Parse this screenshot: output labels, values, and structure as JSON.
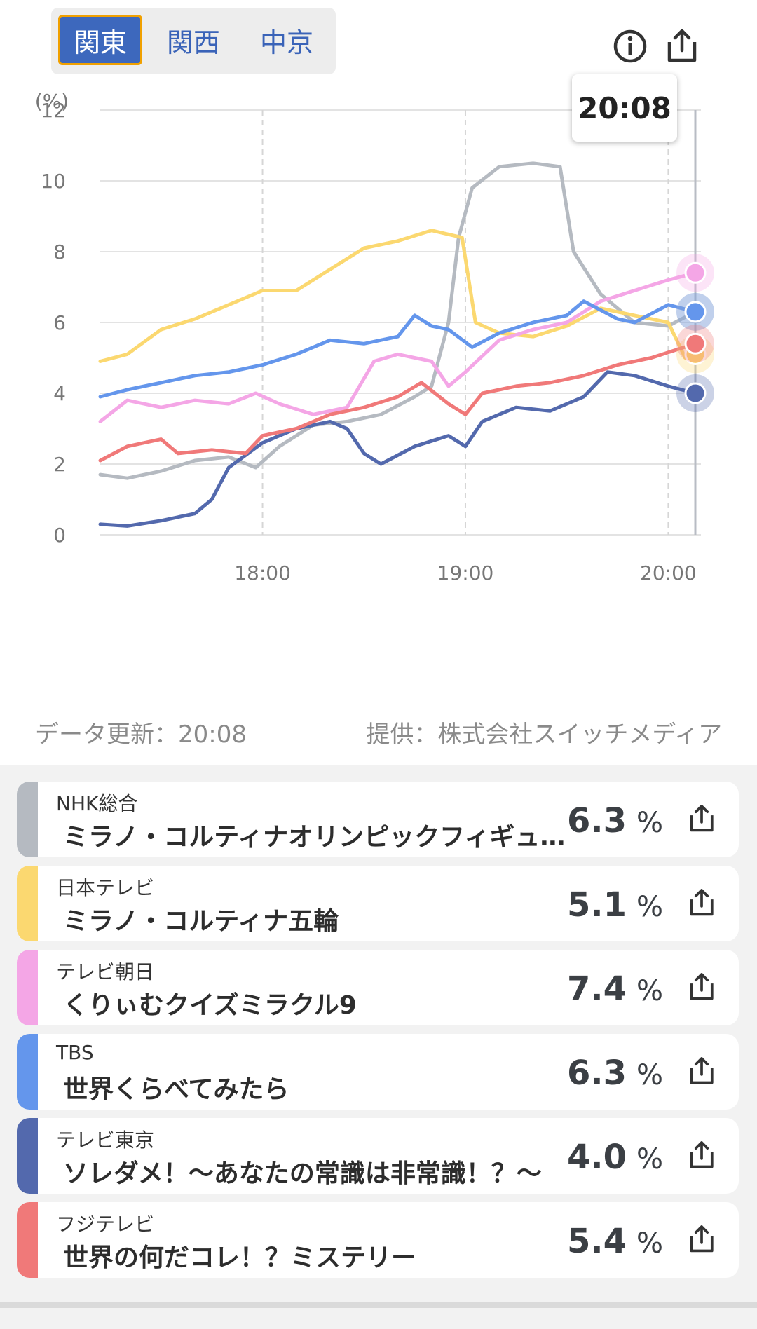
{
  "regions": {
    "items": [
      "関東",
      "関西",
      "中京"
    ],
    "active": 0
  },
  "tooltip_time": "20:08",
  "icons": {
    "info": "info-icon",
    "share": "share-icon"
  },
  "footer": {
    "updated": "データ更新：20:08",
    "provider": "提供：株式会社スイッチメディア"
  },
  "channels": [
    {
      "channel": "NHK総合",
      "title": "ミラノ・コルティナオリンピックフィギュ…",
      "value": "6.3",
      "unit": "%",
      "color": "#b5bac1"
    },
    {
      "channel": "日本テレビ",
      "title": "ミラノ・コルティナ五輪",
      "value": "5.1",
      "unit": "%",
      "color": "#fbd870"
    },
    {
      "channel": "テレビ朝日",
      "title": "くりぃむクイズミラクル9",
      "value": "7.4",
      "unit": "%",
      "color": "#f4a6e6"
    },
    {
      "channel": "TBS",
      "title": "世界くらべてみたら",
      "value": "6.3",
      "unit": "%",
      "color": "#6496ec"
    },
    {
      "channel": "テレビ東京",
      "title": "ソレダメ！～あなたの常識は非常識！？～",
      "value": "4.0",
      "unit": "%",
      "color": "#5369ad"
    },
    {
      "channel": "フジテレビ",
      "title": "世界の何だコレ！？ミステリー",
      "value": "5.4",
      "unit": "%",
      "color": "#f07979"
    }
  ],
  "chart_data": {
    "type": "line",
    "ylabel": "(%)",
    "ylim": [
      0,
      12
    ],
    "yticks": [
      "0",
      "2",
      "4",
      "6",
      "8",
      "10",
      "12"
    ],
    "xlim": [
      "17:12",
      "20:08"
    ],
    "xticks": [
      "18:00",
      "19:00",
      "20:00"
    ],
    "grid": true,
    "series": [
      {
        "name": "NHK総合",
        "color": "#b5bac1",
        "points": [
          [
            "17:12",
            1.7
          ],
          [
            "17:20",
            1.6
          ],
          [
            "17:30",
            1.8
          ],
          [
            "17:40",
            2.1
          ],
          [
            "17:50",
            2.2
          ],
          [
            "17:58",
            1.9
          ],
          [
            "18:05",
            2.5
          ],
          [
            "18:15",
            3.1
          ],
          [
            "18:25",
            3.2
          ],
          [
            "18:35",
            3.4
          ],
          [
            "18:45",
            3.9
          ],
          [
            "18:50",
            4.2
          ],
          [
            "18:55",
            6.0
          ],
          [
            "18:58",
            8.4
          ],
          [
            "19:02",
            9.8
          ],
          [
            "19:10",
            10.4
          ],
          [
            "19:20",
            10.5
          ],
          [
            "19:28",
            10.4
          ],
          [
            "19:32",
            8.0
          ],
          [
            "19:40",
            6.8
          ],
          [
            "19:50",
            6.0
          ],
          [
            "20:00",
            5.9
          ],
          [
            "20:08",
            6.3
          ]
        ]
      },
      {
        "name": "日本テレビ",
        "color": "#fbd870",
        "points": [
          [
            "17:12",
            4.9
          ],
          [
            "17:20",
            5.1
          ],
          [
            "17:30",
            5.8
          ],
          [
            "17:40",
            6.1
          ],
          [
            "17:50",
            6.5
          ],
          [
            "18:00",
            6.9
          ],
          [
            "18:10",
            6.9
          ],
          [
            "18:20",
            7.5
          ],
          [
            "18:30",
            8.1
          ],
          [
            "18:40",
            8.3
          ],
          [
            "18:50",
            8.6
          ],
          [
            "18:59",
            8.4
          ],
          [
            "19:03",
            6.0
          ],
          [
            "19:10",
            5.7
          ],
          [
            "19:20",
            5.6
          ],
          [
            "19:30",
            5.9
          ],
          [
            "19:40",
            6.4
          ],
          [
            "19:50",
            6.2
          ],
          [
            "20:00",
            6.0
          ],
          [
            "20:05",
            5.0
          ],
          [
            "20:08",
            5.1
          ]
        ]
      },
      {
        "name": "テレビ朝日",
        "color": "#f4a6e6",
        "points": [
          [
            "17:12",
            3.2
          ],
          [
            "17:20",
            3.8
          ],
          [
            "17:30",
            3.6
          ],
          [
            "17:40",
            3.8
          ],
          [
            "17:50",
            3.7
          ],
          [
            "17:58",
            4.0
          ],
          [
            "18:05",
            3.7
          ],
          [
            "18:15",
            3.4
          ],
          [
            "18:25",
            3.6
          ],
          [
            "18:33",
            4.9
          ],
          [
            "18:40",
            5.1
          ],
          [
            "18:50",
            4.9
          ],
          [
            "18:55",
            4.2
          ],
          [
            "19:00",
            4.6
          ],
          [
            "19:10",
            5.5
          ],
          [
            "19:20",
            5.8
          ],
          [
            "19:30",
            6.0
          ],
          [
            "19:40",
            6.6
          ],
          [
            "19:50",
            6.9
          ],
          [
            "20:00",
            7.2
          ],
          [
            "20:08",
            7.4
          ]
        ]
      },
      {
        "name": "TBS",
        "color": "#6496ec",
        "points": [
          [
            "17:12",
            3.9
          ],
          [
            "17:20",
            4.1
          ],
          [
            "17:30",
            4.3
          ],
          [
            "17:40",
            4.5
          ],
          [
            "17:50",
            4.6
          ],
          [
            "18:00",
            4.8
          ],
          [
            "18:10",
            5.1
          ],
          [
            "18:20",
            5.5
          ],
          [
            "18:30",
            5.4
          ],
          [
            "18:40",
            5.6
          ],
          [
            "18:45",
            6.2
          ],
          [
            "18:50",
            5.9
          ],
          [
            "18:55",
            5.8
          ],
          [
            "19:02",
            5.3
          ],
          [
            "19:10",
            5.7
          ],
          [
            "19:20",
            6.0
          ],
          [
            "19:30",
            6.2
          ],
          [
            "19:35",
            6.6
          ],
          [
            "19:45",
            6.1
          ],
          [
            "19:50",
            6.0
          ],
          [
            "20:00",
            6.5
          ],
          [
            "20:08",
            6.3
          ]
        ]
      },
      {
        "name": "テレビ東京",
        "color": "#5369ad",
        "points": [
          [
            "17:12",
            0.3
          ],
          [
            "17:20",
            0.25
          ],
          [
            "17:30",
            0.4
          ],
          [
            "17:40",
            0.6
          ],
          [
            "17:45",
            1.0
          ],
          [
            "17:50",
            1.9
          ],
          [
            "18:00",
            2.6
          ],
          [
            "18:10",
            3.0
          ],
          [
            "18:20",
            3.2
          ],
          [
            "18:25",
            3.0
          ],
          [
            "18:30",
            2.3
          ],
          [
            "18:35",
            2.0
          ],
          [
            "18:45",
            2.5
          ],
          [
            "18:55",
            2.8
          ],
          [
            "19:00",
            2.5
          ],
          [
            "19:05",
            3.2
          ],
          [
            "19:15",
            3.6
          ],
          [
            "19:25",
            3.5
          ],
          [
            "19:35",
            3.9
          ],
          [
            "19:42",
            4.6
          ],
          [
            "19:50",
            4.5
          ],
          [
            "20:00",
            4.2
          ],
          [
            "20:08",
            4.0
          ]
        ]
      },
      {
        "name": "フジテレビ",
        "color": "#f07979",
        "points": [
          [
            "17:12",
            2.1
          ],
          [
            "17:20",
            2.5
          ],
          [
            "17:30",
            2.7
          ],
          [
            "17:35",
            2.3
          ],
          [
            "17:45",
            2.4
          ],
          [
            "17:55",
            2.3
          ],
          [
            "18:00",
            2.8
          ],
          [
            "18:10",
            3.0
          ],
          [
            "18:20",
            3.4
          ],
          [
            "18:30",
            3.6
          ],
          [
            "18:40",
            3.9
          ],
          [
            "18:47",
            4.3
          ],
          [
            "18:55",
            3.7
          ],
          [
            "19:00",
            3.4
          ],
          [
            "19:05",
            4.0
          ],
          [
            "19:15",
            4.2
          ],
          [
            "19:25",
            4.3
          ],
          [
            "19:35",
            4.5
          ],
          [
            "19:45",
            4.8
          ],
          [
            "19:55",
            5.0
          ],
          [
            "20:08",
            5.4
          ]
        ]
      }
    ]
  }
}
